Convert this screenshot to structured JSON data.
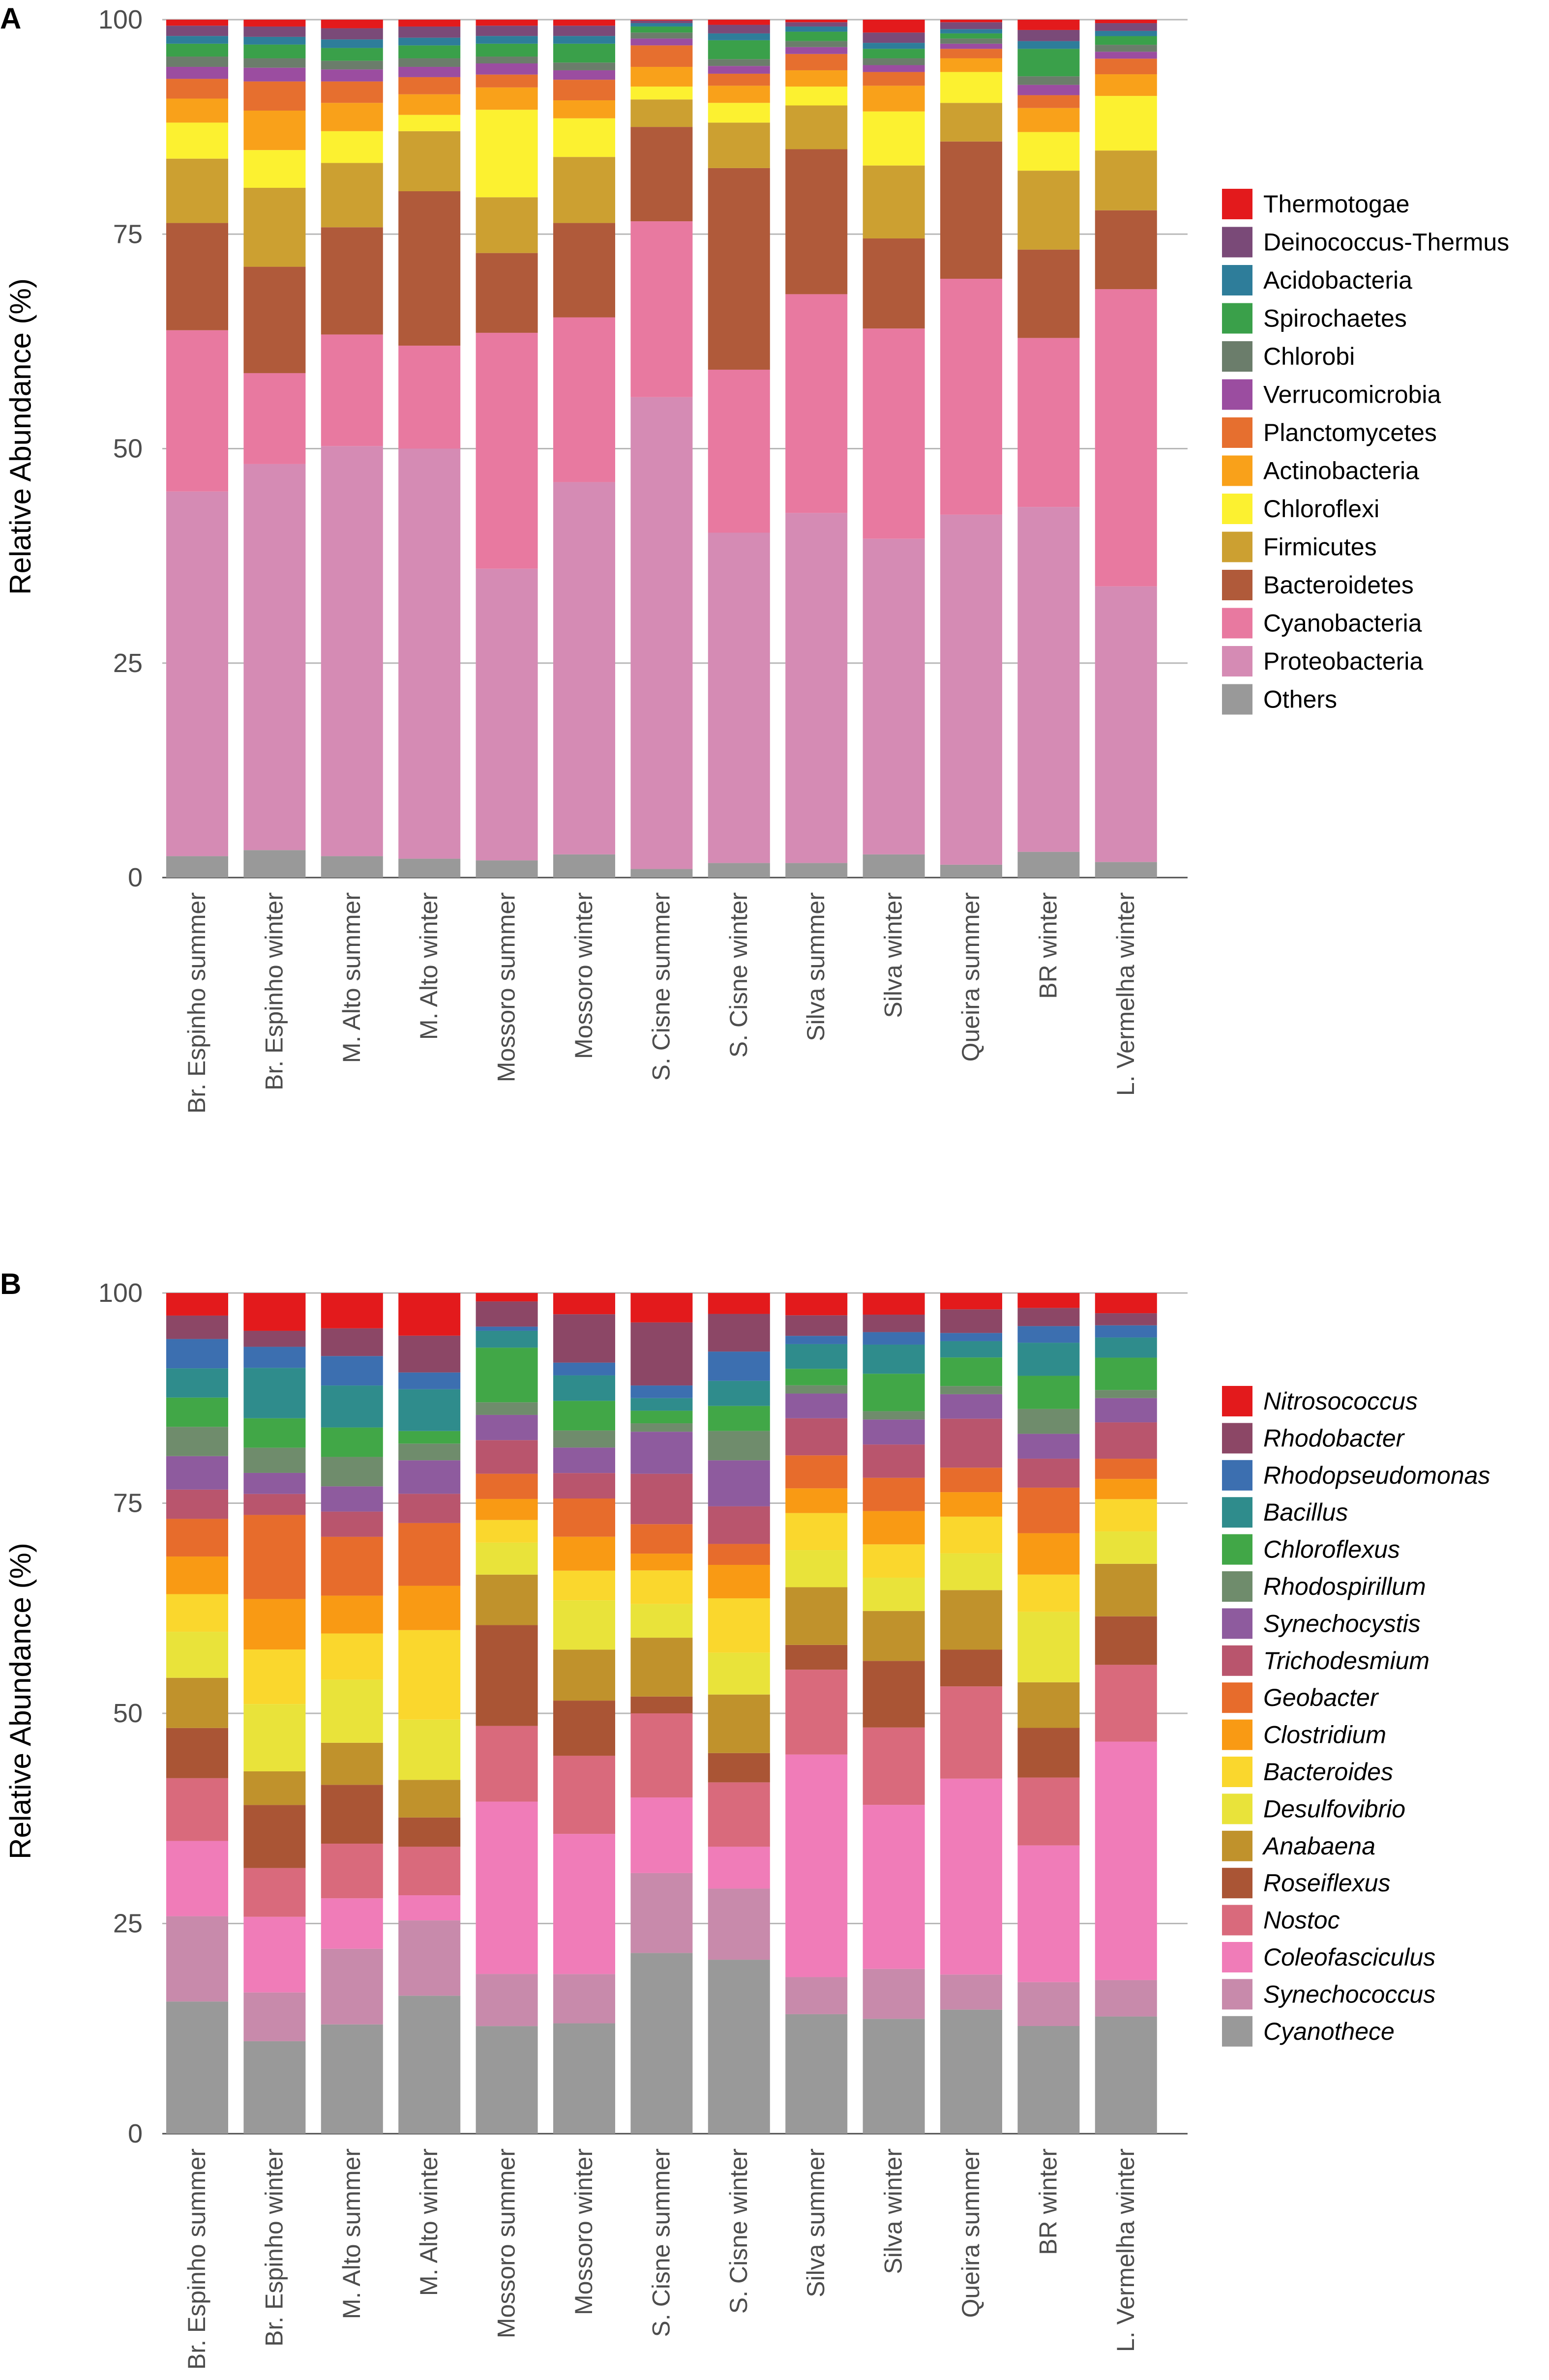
{
  "chart_data": [
    {
      "panel": "A",
      "type": "bar",
      "stacked": true,
      "ylabel": "Relative Abundance (%)",
      "ylim": [
        0,
        100
      ],
      "yticks": [
        0,
        25,
        50,
        75,
        100
      ],
      "grid": true,
      "legend_position": "right",
      "legend_italic": false,
      "categories": [
        "Br. Espinho summer",
        "Br. Espinho winter",
        "M. Alto summer",
        "M. Alto winter",
        "Mossoro summer",
        "Mossoro winter",
        "S. Cisne summer",
        "S. Cisne winter",
        "Silva summer",
        "Silva winter",
        "Queira summer",
        "BR winter",
        "L. Vermelha winter"
      ],
      "series": [
        {
          "name": "Others",
          "color": "#999999",
          "values": [
            2.5,
            3.2,
            2.5,
            2.2,
            2.0,
            2.7,
            1.0,
            1.7,
            1.7,
            2.7,
            1.5,
            3.0,
            1.8
          ]
        },
        {
          "name": "Proteobacteria",
          "color": "#d58bb4",
          "values": [
            42.5,
            45.0,
            47.8,
            47.8,
            34.0,
            43.4,
            55.0,
            38.5,
            40.8,
            36.8,
            40.8,
            40.2,
            31.8
          ]
        },
        {
          "name": "Cyanobacteria",
          "color": "#e879a0",
          "values": [
            18.8,
            10.6,
            13.0,
            12.0,
            27.5,
            19.2,
            20.5,
            19.0,
            25.5,
            24.5,
            27.5,
            19.7,
            34.3
          ]
        },
        {
          "name": "Bacteroidetes",
          "color": "#b05a3a",
          "values": [
            12.5,
            12.4,
            12.5,
            18.0,
            9.3,
            11.0,
            11.0,
            23.5,
            16.9,
            10.5,
            16.0,
            10.3,
            9.1
          ]
        },
        {
          "name": "Firmicutes",
          "color": "#cca031",
          "values": [
            7.5,
            9.2,
            7.5,
            7.0,
            6.5,
            7.7,
            3.2,
            5.3,
            5.1,
            8.5,
            4.5,
            9.2,
            6.9
          ]
        },
        {
          "name": "Chloroflexi",
          "color": "#fcf130",
          "values": [
            4.2,
            4.4,
            3.7,
            1.9,
            10.2,
            4.5,
            1.5,
            2.3,
            2.2,
            6.3,
            3.6,
            4.5,
            6.3
          ]
        },
        {
          "name": "Actinobacteria",
          "color": "#f9a11a",
          "values": [
            2.8,
            4.6,
            3.3,
            2.4,
            2.6,
            2.1,
            2.3,
            2.0,
            1.9,
            3.0,
            1.6,
            2.8,
            2.5
          ]
        },
        {
          "name": "Planctomycetes",
          "color": "#e66f2f",
          "values": [
            2.3,
            3.4,
            2.5,
            2.0,
            1.5,
            2.4,
            2.5,
            1.4,
            1.9,
            1.6,
            1.1,
            1.5,
            1.8
          ]
        },
        {
          "name": "Verrucomicrobia",
          "color": "#9b4da0",
          "values": [
            1.4,
            1.6,
            1.4,
            1.2,
            1.3,
            1.1,
            0.8,
            0.9,
            0.8,
            0.8,
            0.6,
            1.2,
            0.8
          ]
        },
        {
          "name": "Chlorobi",
          "color": "#6b7d6b",
          "values": [
            1.2,
            1.1,
            1.0,
            1.0,
            0.8,
            0.9,
            0.7,
            0.8,
            0.7,
            0.8,
            0.6,
            1.0,
            0.8
          ]
        },
        {
          "name": "Spirochaetes",
          "color": "#3aa04a",
          "values": [
            1.5,
            1.6,
            1.5,
            1.5,
            1.5,
            2.2,
            0.7,
            2.2,
            1.1,
            1.1,
            0.6,
            3.2,
            1.0
          ]
        },
        {
          "name": "Acidobacteria",
          "color": "#2e7d9a",
          "values": [
            0.9,
            0.9,
            1.0,
            0.9,
            0.9,
            0.9,
            0.4,
            0.8,
            0.6,
            0.7,
            0.5,
            0.9,
            0.6
          ]
        },
        {
          "name": "Deinococcus-Thermus",
          "color": "#7a4a78",
          "values": [
            1.2,
            1.2,
            1.3,
            1.3,
            1.2,
            1.2,
            0.3,
            1.0,
            0.5,
            1.2,
            0.8,
            1.3,
            0.9
          ]
        },
        {
          "name": "Thermotogae",
          "color": "#e31a1c",
          "values": [
            0.7,
            0.8,
            1.0,
            0.8,
            0.7,
            0.7,
            0.1,
            0.6,
            0.3,
            1.5,
            0.3,
            1.2,
            0.4
          ]
        }
      ]
    },
    {
      "panel": "B",
      "type": "bar",
      "stacked": true,
      "ylabel": "Relative Abundance (%)",
      "ylim": [
        0,
        100
      ],
      "yticks": [
        0,
        25,
        50,
        75,
        100
      ],
      "grid": true,
      "legend_position": "right",
      "legend_italic": true,
      "categories": [
        "Br. Espinho summer",
        "Br. Espinho winter",
        "M. Alto summer",
        "M. Alto winter",
        "Mossoro summer",
        "Mossoro winter",
        "S. Cisne summer",
        "S. Cisne winter",
        "Silva summer",
        "Silva winter",
        "Queira summer",
        "BR winter",
        "L. Vermelha winter"
      ],
      "series": [
        {
          "name": "Cyanothece",
          "color": "#999999",
          "values": [
            15.8,
            11.0,
            13.0,
            16.5,
            12.8,
            13.0,
            21.5,
            20.8,
            14.5,
            13.8,
            15.2,
            13.0,
            14.5
          ]
        },
        {
          "name": "Synechococcus",
          "color": "#c88aab",
          "values": [
            10.2,
            5.8,
            9.0,
            9.0,
            6.2,
            5.8,
            9.5,
            8.5,
            4.5,
            6.0,
            4.3,
            5.3,
            4.5
          ]
        },
        {
          "name": "Coleofasciculus",
          "color": "#f07cb8",
          "values": [
            9.0,
            9.0,
            6.0,
            3.0,
            20.5,
            16.5,
            9.0,
            5.0,
            27.0,
            19.7,
            24.0,
            16.5,
            29.5
          ]
        },
        {
          "name": "Nostoc",
          "color": "#d96a7c",
          "values": [
            7.5,
            5.8,
            6.5,
            5.8,
            9.0,
            9.2,
            10.0,
            7.7,
            10.3,
            9.3,
            11.3,
            8.2,
            9.5
          ]
        },
        {
          "name": "Roseiflexus",
          "color": "#aa5535",
          "values": [
            6.0,
            7.5,
            7.0,
            3.5,
            12.0,
            6.5,
            2.0,
            3.5,
            3.0,
            8.0,
            4.5,
            6.0,
            6.0
          ]
        },
        {
          "name": "Anabaena",
          "color": "#c0922c",
          "values": [
            6.0,
            4.0,
            5.0,
            4.5,
            6.0,
            6.0,
            7.0,
            7.0,
            7.0,
            6.0,
            7.3,
            5.5,
            6.5
          ]
        },
        {
          "name": "Desulfovibrio",
          "color": "#e9e33a",
          "values": [
            5.5,
            8.0,
            7.5,
            7.2,
            3.8,
            5.8,
            4.0,
            5.0,
            4.5,
            4.0,
            4.5,
            8.5,
            4.0
          ]
        },
        {
          "name": "Bacteroides",
          "color": "#fad72d",
          "values": [
            4.5,
            6.5,
            5.5,
            10.7,
            2.7,
            3.5,
            4.0,
            6.5,
            4.5,
            4.0,
            4.5,
            4.5,
            4.0
          ]
        },
        {
          "name": "Clostridium",
          "color": "#f99a14",
          "values": [
            4.5,
            6.0,
            4.5,
            5.3,
            2.5,
            4.0,
            2.0,
            4.0,
            3.0,
            4.0,
            3.0,
            5.0,
            2.5
          ]
        },
        {
          "name": "Geobacter",
          "color": "#e76c2c",
          "values": [
            4.5,
            10.0,
            7.0,
            7.5,
            3.0,
            4.5,
            3.5,
            2.5,
            4.0,
            4.0,
            3.0,
            5.5,
            2.5
          ]
        },
        {
          "name": "Trichodesmium",
          "color": "#b9556d",
          "values": [
            3.5,
            2.5,
            3.0,
            3.5,
            4.0,
            3.0,
            6.0,
            4.5,
            4.5,
            4.0,
            6.0,
            3.5,
            4.5
          ]
        },
        {
          "name": "Synechocystis",
          "color": "#8e5b9e",
          "values": [
            4.0,
            2.5,
            3.0,
            4.0,
            3.0,
            3.0,
            5.0,
            5.5,
            3.0,
            3.0,
            3.0,
            3.0,
            3.0
          ]
        },
        {
          "name": "Rhodospirillum",
          "color": "#6f8c6c",
          "values": [
            3.5,
            3.0,
            3.5,
            2.0,
            1.5,
            2.0,
            1.0,
            3.5,
            1.0,
            1.0,
            1.0,
            3.0,
            1.0
          ]
        },
        {
          "name": "Chloroflexus",
          "color": "#41a747",
          "values": [
            3.5,
            3.5,
            3.5,
            1.5,
            6.5,
            3.5,
            1.5,
            3.0,
            2.0,
            4.5,
            3.5,
            4.0,
            4.0
          ]
        },
        {
          "name": "Bacillus",
          "color": "#2f8c8c",
          "values": [
            3.5,
            6.0,
            5.0,
            5.0,
            2.0,
            3.0,
            1.5,
            3.0,
            3.0,
            3.5,
            2.0,
            4.0,
            2.5
          ]
        },
        {
          "name": "Rhodopseudomonas",
          "color": "#3c6fb0",
          "values": [
            3.5,
            2.5,
            3.5,
            2.0,
            0.5,
            1.5,
            1.5,
            3.5,
            1.0,
            1.5,
            1.0,
            2.0,
            1.5
          ]
        },
        {
          "name": "Rhodobacter",
          "color": "#8c4766",
          "values": [
            2.8,
            1.9,
            3.3,
            4.4,
            3.0,
            5.7,
            7.5,
            4.5,
            2.5,
            2.1,
            2.9,
            2.2,
            1.5
          ]
        },
        {
          "name": "Nitrosococcus",
          "color": "#e31a1c",
          "values": [
            2.7,
            4.5,
            4.2,
            5.1,
            1.0,
            2.5,
            3.5,
            2.5,
            2.7,
            2.6,
            2.0,
            1.8,
            2.5
          ]
        }
      ]
    }
  ]
}
